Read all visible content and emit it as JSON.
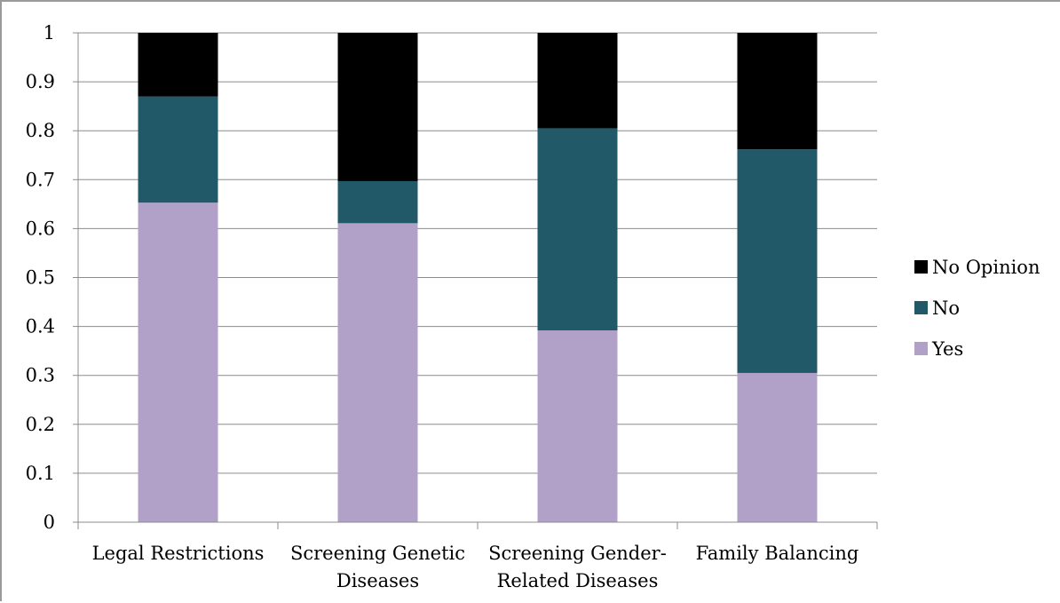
{
  "chart_data": {
    "type": "bar",
    "stacked": true,
    "categories": [
      [
        "Legal Restrictions"
      ],
      [
        "Screening Genetic",
        "Diseases"
      ],
      [
        "Screening Gender-",
        "Related Diseases"
      ],
      [
        "Family Balancing"
      ]
    ],
    "series": [
      {
        "name": "Yes",
        "color": "#b1a0c7",
        "values": [
          0.653,
          0.611,
          0.392,
          0.305
        ]
      },
      {
        "name": "No",
        "color": "#215968",
        "values": [
          0.217,
          0.086,
          0.413,
          0.457
        ]
      },
      {
        "name": "No Opinion",
        "color": "#000000",
        "values": [
          0.13,
          0.303,
          0.195,
          0.238
        ]
      }
    ],
    "ylim": [
      0,
      1
    ],
    "yticks": [
      "0",
      "0.1",
      "0.2",
      "0.3",
      "0.4",
      "0.5",
      "0.6",
      "0.7",
      "0.8",
      "0.9",
      "1"
    ],
    "grid": true,
    "legend_position": "right",
    "legend_order": [
      "No Opinion",
      "No",
      "Yes"
    ]
  }
}
